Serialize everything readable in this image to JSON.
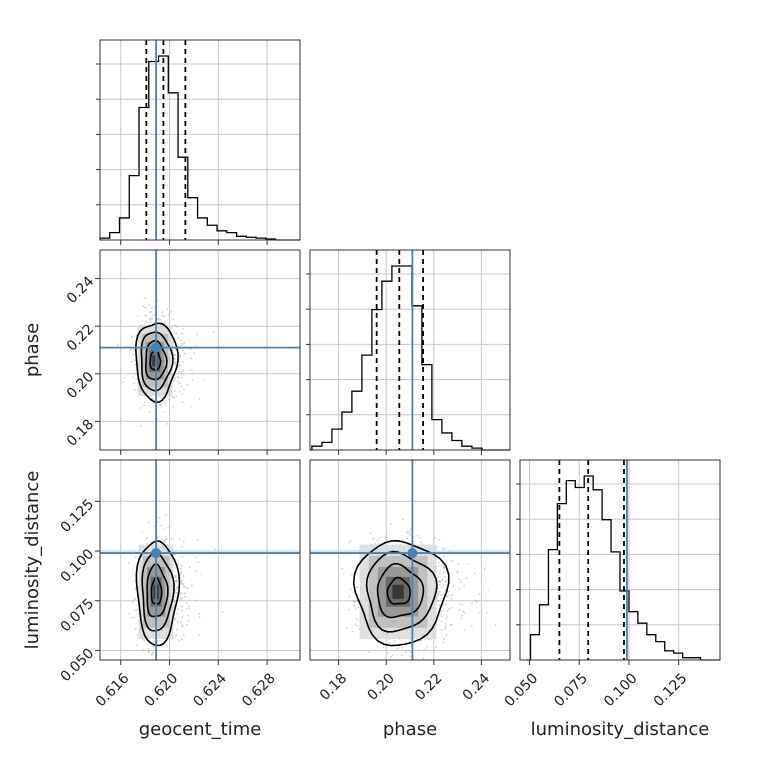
{
  "chart_data": {
    "type": "corner",
    "parameters": [
      "geocent_time",
      "phase",
      "luminosity_distance"
    ],
    "truths": {
      "geocent_time": 0.6189,
      "phase": 0.211,
      "luminosity_distance": 0.099
    },
    "truth_color": "#4682b4",
    "axes": {
      "geocent_time": {
        "lim": [
          0.6143,
          0.6307
        ],
        "ticks": [
          0.616,
          0.62,
          0.624,
          0.628
        ],
        "tick_labels": [
          "0.616",
          "0.620",
          "0.624",
          "0.628"
        ]
      },
      "phase": {
        "lim": [
          0.168,
          0.252
        ],
        "ticks": [
          0.18,
          0.2,
          0.22,
          0.24
        ],
        "tick_labels": [
          "0.18",
          "0.20",
          "0.22",
          "0.24"
        ]
      },
      "luminosity_distance": {
        "lim": [
          0.0452,
          0.1458
        ],
        "ticks": [
          0.05,
          0.075,
          0.1,
          0.125
        ],
        "tick_labels": [
          "0.050",
          "0.075",
          "0.100",
          "0.125"
        ]
      }
    },
    "marginals": [
      {
        "param": "geocent_time",
        "bin_edges": [
          0.6143,
          0.6151,
          0.6159,
          0.6167,
          0.6175,
          0.6183,
          0.6191,
          0.6199,
          0.6207,
          0.6215,
          0.6223,
          0.6231,
          0.6239,
          0.6247,
          0.6255,
          0.6263,
          0.6271,
          0.6279,
          0.6287,
          0.6295,
          0.6303
        ],
        "counts": [
          1,
          4,
          12,
          35,
          72,
          97,
          100,
          80,
          45,
          23,
          12,
          8,
          5,
          4,
          2,
          1.5,
          1,
          0.5,
          0,
          0
        ],
        "quantiles": [
          0.6181,
          0.6195,
          0.6213
        ]
      },
      {
        "param": "phase",
        "bin_edges": [
          0.1688,
          0.173,
          0.1772,
          0.1814,
          0.1856,
          0.1898,
          0.194,
          0.1982,
          0.2024,
          0.2066,
          0.2108,
          0.215,
          0.2192,
          0.2234,
          0.2276,
          0.2318,
          0.236,
          0.2402,
          0.2444,
          0.2486
        ],
        "counts": [
          2,
          4,
          11,
          20,
          31,
          50,
          74,
          89,
          97,
          97,
          76,
          45,
          16,
          9,
          5,
          2,
          1,
          0,
          0
        ],
        "quantiles": [
          0.196,
          0.2055,
          0.2155
        ]
      },
      {
        "param": "luminosity_distance",
        "bin_edges": [
          0.0505,
          0.055,
          0.0595,
          0.064,
          0.0685,
          0.073,
          0.0775,
          0.082,
          0.0865,
          0.091,
          0.0955,
          0.1,
          0.1045,
          0.109,
          0.1135,
          0.118,
          0.1225,
          0.127,
          0.1315,
          0.136
        ],
        "counts": [
          11,
          24,
          48,
          68,
          78,
          75,
          80,
          74,
          61,
          47,
          30,
          21,
          16,
          11,
          8,
          4,
          3,
          1,
          1
        ],
        "quantiles": [
          0.065,
          0.0795,
          0.0975
        ]
      }
    ],
    "joint": [
      {
        "x": "geocent_time",
        "y": "phase",
        "center": [
          0.6188,
          0.2055
        ],
        "spread": [
          0.00075,
          0.0078
        ],
        "contour_levels": [
          0.5,
          1.0,
          1.5,
          2.0
        ]
      },
      {
        "x": "geocent_time",
        "y": "luminosity_distance",
        "center": [
          0.6189,
          0.0795
        ],
        "spread": [
          0.00075,
          0.0125
        ],
        "contour_levels": [
          0.5,
          1.0,
          1.5,
          2.0
        ]
      },
      {
        "x": "phase",
        "y": "luminosity_distance",
        "center": [
          0.205,
          0.0795
        ],
        "spread": [
          0.0085,
          0.0125
        ],
        "contour_levels": [
          0.5,
          1.0,
          1.5,
          2.0
        ]
      }
    ]
  }
}
